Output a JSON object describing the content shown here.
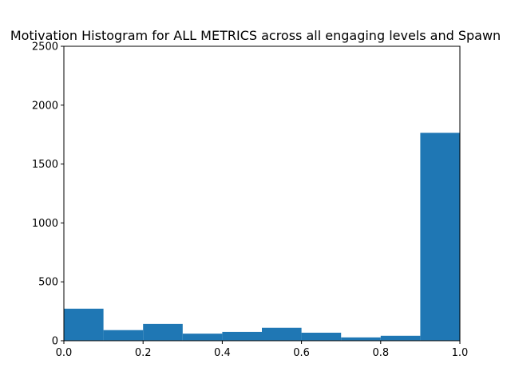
{
  "chart_data": {
    "type": "bar",
    "title": "Motivation Histogram for ALL METRICS across all engaging levels and Spawn",
    "xlabel": "",
    "ylabel": "",
    "xlim": [
      0.0,
      1.0
    ],
    "ylim": [
      0,
      2500
    ],
    "x_ticks": [
      "0.0",
      "0.2",
      "0.4",
      "0.6",
      "0.8",
      "1.0"
    ],
    "y_ticks": [
      "0",
      "500",
      "1000",
      "1500",
      "2000",
      "2500"
    ],
    "bin_edges": [
      0.0,
      0.1,
      0.2,
      0.3,
      0.4,
      0.5,
      0.6,
      0.7,
      0.8,
      0.9,
      1.0
    ],
    "values": [
      272,
      90,
      143,
      60,
      75,
      110,
      68,
      28,
      42,
      1765
    ],
    "bar_color": "#1f77b4",
    "grid": false,
    "legend": "none"
  }
}
